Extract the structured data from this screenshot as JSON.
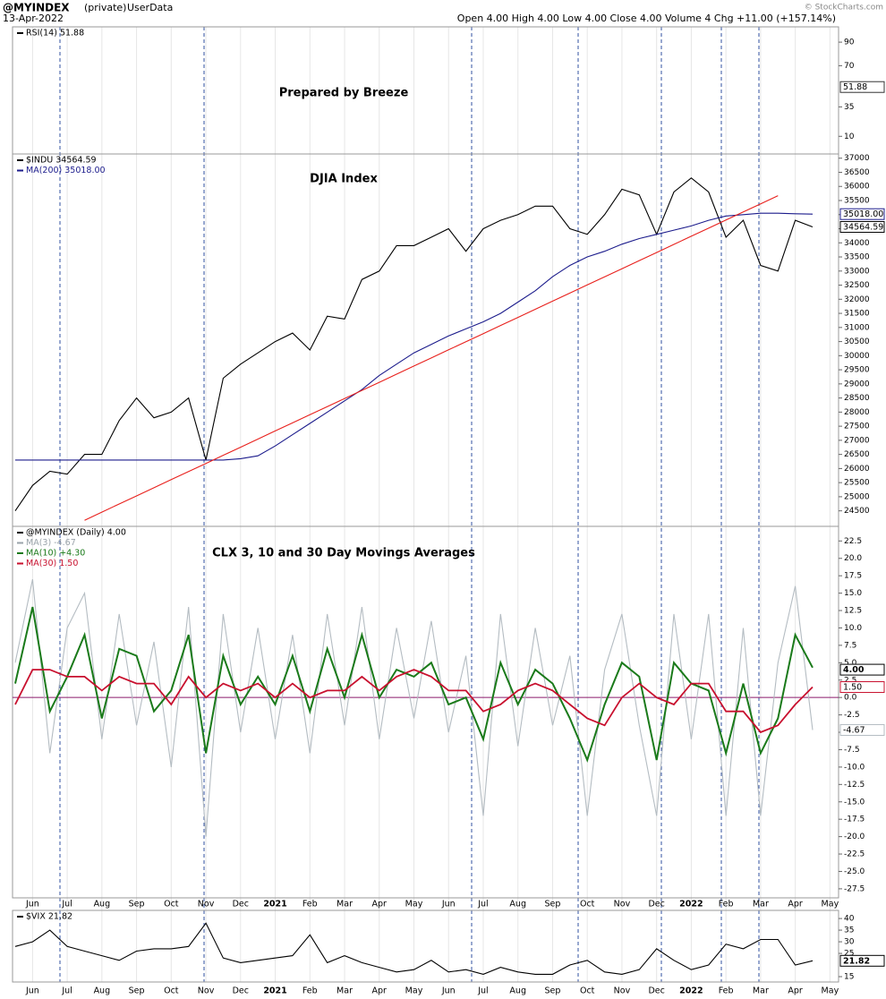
{
  "header": {
    "symbol": "@MYINDEX",
    "privacy": "(private)",
    "source": "UserData",
    "date": "13-Apr-2022",
    "quote": "Open 4.00  High 4.00  Low 4.00  Close 4.00  Volume 4  Chg +11.00 (+157.14%)",
    "watermark": "© StockCharts.com"
  },
  "chart_data": [
    {
      "type": "line",
      "title": "Prepared by Breeze",
      "legend": [
        {
          "text": "RSI(14) 51.88",
          "color": "#000000"
        }
      ],
      "value": 51.88,
      "ylim": [
        -5,
        103
      ],
      "yticks": [
        10,
        35,
        70,
        90
      ]
    },
    {
      "type": "line",
      "title": "DJIA Index",
      "legend": [
        {
          "text": "$INDU 34564.59",
          "color": "#000000"
        },
        {
          "text": "MA(200) 35018.00",
          "color": "#1c1c8c"
        }
      ],
      "ylim": [
        23950,
        37150
      ],
      "yticks": [
        24500,
        25000,
        25500,
        26000,
        26500,
        27000,
        27500,
        28000,
        28500,
        29000,
        29500,
        30000,
        30500,
        31000,
        31500,
        32000,
        32500,
        33000,
        33500,
        34000,
        34500,
        35000,
        35500,
        36000,
        36500,
        37000
      ],
      "series": [
        {
          "color": "#000000",
          "tag": true,
          "values": [
            24500,
            25400,
            25900,
            25800,
            26500,
            26500,
            27700,
            28500,
            27800,
            28000,
            28500,
            26300,
            29200,
            29700,
            30100,
            30500,
            30800,
            30200,
            31400,
            31300,
            32700,
            33000,
            33900,
            33900,
            34200,
            34500,
            33700,
            34500,
            34800,
            35000,
            35300,
            35300,
            34500,
            34300,
            35000,
            35900,
            35700,
            34300,
            35800,
            36300,
            35800,
            34200,
            34800,
            33200,
            33000,
            34800,
            34564.59,
            null
          ]
        },
        {
          "color": "#1c1c8c",
          "tag_label": "35018.00",
          "values": [
            26300,
            26300,
            26300,
            26300,
            26300,
            26300,
            26300,
            26300,
            26300,
            26300,
            26300,
            26300,
            26300,
            26350,
            26450,
            26800,
            27200,
            27600,
            28000,
            28400,
            28800,
            29300,
            29700,
            30100,
            30400,
            30700,
            30950,
            31200,
            31500,
            31900,
            32300,
            32800,
            33200,
            33500,
            33700,
            33950,
            34150,
            34300,
            34450,
            34600,
            34800,
            34950,
            35000,
            35050,
            35050,
            35030,
            35018,
            null
          ]
        },
        {
          "color": "#e8201c",
          "values": [
            null,
            null,
            null,
            null,
            24167,
            24455,
            24742,
            25030,
            25318,
            25605,
            25893,
            26180,
            26468,
            26755,
            27043,
            27331,
            27618,
            27906,
            28194,
            28481,
            28769,
            29056,
            29344,
            29632,
            29919,
            30207,
            30494,
            30782,
            31070,
            31357,
            31645,
            31932,
            32220,
            32508,
            32795,
            33083,
            33370,
            33658,
            33946,
            34233,
            34521,
            34808,
            35096,
            35384,
            35671,
            null,
            null,
            null
          ]
        }
      ]
    },
    {
      "type": "line",
      "title": "CLX 3, 10 and 30 Day Movings Averages",
      "legend": [
        {
          "text": "@MYINDEX (Daily) 4.00",
          "color": "#000000"
        },
        {
          "text": "MA(3) -4.67",
          "color": "#9aa3aa"
        },
        {
          "text": "MA(10) +4.30",
          "color": "#1a7a1a"
        },
        {
          "text": "MA(30) 1.50",
          "color": "#c8102e"
        }
      ],
      "close": {
        "value": 4,
        "label": "4.00"
      },
      "hline": 0,
      "hline_color": "#8b1a6b",
      "ylim": [
        -28.8,
        24.6
      ],
      "yticks": [
        22.5,
        {
          "value": 20,
          "label": "20.0"
        },
        17.5,
        {
          "value": 15,
          "label": "15.0"
        },
        12.5,
        {
          "value": 10,
          "label": "10.0"
        },
        7.5,
        {
          "value": 5,
          "label": "5.0"
        },
        2.5,
        {
          "value": 0,
          "label": "0.0"
        },
        -2.5,
        {
          "value": -5,
          "label": "-5.0"
        },
        -7.5,
        {
          "value": -10,
          "label": "-10.0"
        },
        -12.5,
        {
          "value": -15,
          "label": "-15.0"
        },
        -17.5,
        {
          "value": -20,
          "label": "-20.0"
        },
        -22.5,
        {
          "value": -25,
          "label": "-25.0"
        },
        -27.5
      ],
      "categories": [
        null,
        "Jun",
        null,
        "Jul",
        null,
        "Aug",
        null,
        "Sep",
        null,
        "Oct",
        null,
        "Nov",
        null,
        "Dec",
        null,
        "2021",
        null,
        "Feb",
        null,
        "Mar",
        null,
        "Apr",
        null,
        "May",
        null,
        "Jun",
        null,
        "Jul",
        null,
        "Aug",
        null,
        "Sep",
        null,
        "Oct",
        null,
        "Nov",
        null,
        "Dec",
        null,
        "2022",
        null,
        "Feb",
        null,
        "Mar",
        null,
        "Apr",
        null,
        "May"
      ],
      "series": [
        {
          "color": "#b4bcc2",
          "tag": true,
          "values": [
            5,
            17,
            -8,
            10,
            15,
            -6,
            12,
            -4,
            8,
            -10,
            13,
            -20,
            12,
            -5,
            10,
            -6,
            9,
            -8,
            12,
            -4,
            13,
            -6,
            10,
            -3,
            11,
            -5,
            6,
            -17,
            12,
            -7,
            10,
            -4,
            6,
            -17,
            4,
            12,
            -4,
            -17,
            12,
            -6,
            12,
            -17,
            10,
            -17,
            5,
            16,
            -4.67,
            null
          ]
        },
        {
          "color": "#1a7a1a",
          "values": [
            2,
            13,
            -2,
            3,
            9,
            -3,
            7,
            6,
            -2,
            1,
            9,
            -8,
            6,
            -1,
            3,
            -1,
            6,
            -2,
            7,
            0,
            9,
            0,
            4,
            3,
            5,
            -1,
            0,
            -6,
            5,
            -1,
            4,
            2,
            -3,
            -9,
            -1,
            5,
            3,
            -9,
            5,
            2,
            1,
            -8,
            2,
            -8,
            -3,
            9,
            4.3,
            null
          ]
        },
        {
          "color": "#c8102e",
          "tag_label": "1.50",
          "values": [
            -1,
            4,
            4,
            3,
            3,
            1,
            3,
            2,
            2,
            -1,
            3,
            0,
            2,
            1,
            2,
            0,
            2,
            0,
            1,
            1,
            3,
            1,
            3,
            4,
            3,
            1,
            1,
            -2,
            -1,
            1,
            2,
            1,
            -1,
            -3,
            -4,
            0,
            2,
            0,
            -1,
            2,
            2,
            -2,
            -2,
            -5,
            -4,
            -1,
            1.5,
            null
          ]
        }
      ]
    },
    {
      "type": "line",
      "legend": [
        {
          "text": "$VIX 21.82",
          "color": "#000000"
        }
      ],
      "ylim": [
        12.7,
        43.5
      ],
      "yticks": [
        15,
        25,
        30,
        35,
        40
      ],
      "categories": [
        null,
        "Jun",
        null,
        "Jul",
        null,
        "Aug",
        null,
        "Sep",
        null,
        "Oct",
        null,
        "Nov",
        null,
        "Dec",
        null,
        "2021",
        null,
        "Feb",
        null,
        "Mar",
        null,
        "Apr",
        null,
        "May",
        null,
        "Jun",
        null,
        "Jul",
        null,
        "Aug",
        null,
        "Sep",
        null,
        "Oct",
        null,
        "Nov",
        null,
        "Dec",
        null,
        "2022",
        null,
        "Feb",
        null,
        "Mar",
        null,
        "Apr",
        null,
        "May"
      ],
      "series": [
        {
          "color": "#000000",
          "tag": true,
          "values": [
            28,
            30,
            35,
            28,
            26,
            24,
            22,
            26,
            27,
            27,
            28,
            38,
            23,
            21,
            22,
            23,
            24,
            33,
            21,
            24,
            21,
            19,
            17,
            18,
            22,
            17,
            18,
            16,
            19,
            17,
            16,
            16,
            20,
            22,
            17,
            16,
            18,
            27,
            22,
            18,
            20,
            29,
            27,
            31,
            31,
            20,
            21.82,
            null
          ]
        }
      ]
    }
  ]
}
